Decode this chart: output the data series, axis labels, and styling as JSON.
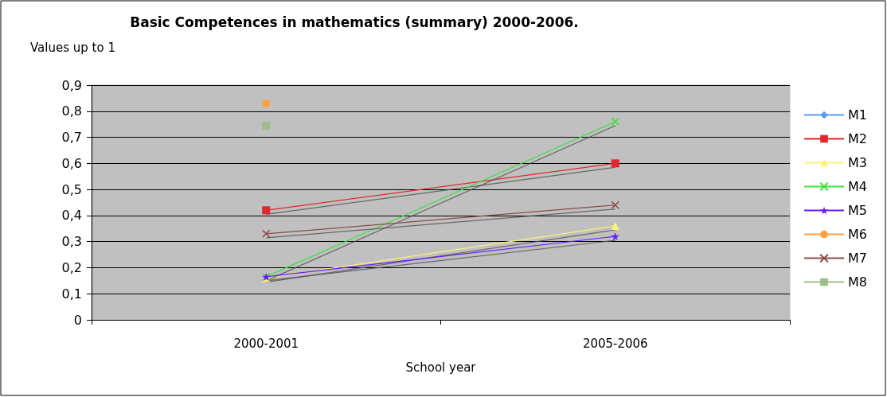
{
  "chart_data": {
    "type": "line",
    "title": "Basic Competences in mathematics (summary) 2000-2006.",
    "ylabel": "Values up to 1",
    "xlabel": "School year",
    "categories": [
      "2000-2001",
      "2005-2006"
    ],
    "series": [
      {
        "name": "M1",
        "color": "#5b9bf5",
        "marker": "diamond",
        "values": [
          null,
          null
        ]
      },
      {
        "name": "M2",
        "color": "#e0282e",
        "marker": "square",
        "values": [
          0.42,
          0.6
        ]
      },
      {
        "name": "M3",
        "color": "#fff176",
        "marker": "triangle",
        "values": [
          0.16,
          0.36
        ]
      },
      {
        "name": "M4",
        "color": "#40e040",
        "marker": "cross",
        "values": [
          0.165,
          0.76
        ]
      },
      {
        "name": "M5",
        "color": "#6a1bff",
        "marker": "star",
        "values": [
          0.165,
          0.32
        ]
      },
      {
        "name": "M6",
        "color": "#ffa040",
        "marker": "circle",
        "values": [
          0.83,
          null
        ]
      },
      {
        "name": "M7",
        "color": "#8b4a4a",
        "marker": "cross",
        "values": [
          0.33,
          0.44
        ]
      },
      {
        "name": "M8",
        "color": "#9cbf8a",
        "marker": "square",
        "values": [
          0.745,
          null
        ]
      }
    ],
    "ylim": [
      0,
      0.9
    ],
    "yticks": [
      0,
      {
        "value": 0.1,
        "label": "0,1"
      },
      {
        "value": 0.2,
        "label": "0,2"
      },
      {
        "value": 0.3,
        "label": "0,3"
      },
      {
        "value": 0.4,
        "label": "0,4"
      },
      {
        "value": 0.5,
        "label": "0,5"
      },
      {
        "value": 0.6,
        "label": "0,6"
      },
      {
        "value": 0.7,
        "label": "0,7"
      },
      {
        "value": 0.8,
        "label": "0,8"
      },
      {
        "value": 0.9,
        "label": "0,9"
      }
    ],
    "grid": "y",
    "legend": "right"
  }
}
